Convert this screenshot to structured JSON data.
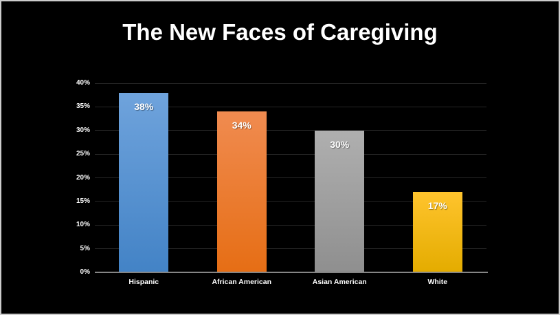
{
  "slide": {
    "title": "The New Faces of Caregiving"
  },
  "chart_data": {
    "type": "bar",
    "title": "The New Faces of Caregiving",
    "categories": [
      "Hispanic",
      "African American",
      "Asian American",
      "White"
    ],
    "values": [
      38,
      34,
      30,
      17
    ],
    "value_labels": [
      "38%",
      "34%",
      "30%",
      "17%"
    ],
    "bar_colors": [
      {
        "top": "#6FA3DC",
        "bottom": "#4383C6"
      },
      {
        "top": "#F08B50",
        "bottom": "#E66E15"
      },
      {
        "top": "#AFAFAF",
        "bottom": "#8F8F8F"
      },
      {
        "top": "#FFC42D",
        "bottom": "#E4AC00"
      }
    ],
    "xlabel": "",
    "ylabel": "",
    "ylim": [
      0,
      40
    ],
    "yticks": [
      "0%",
      "5%",
      "10%",
      "15%",
      "20%",
      "25%",
      "30%",
      "35%",
      "40%"
    ],
    "ytick_values": [
      0,
      5,
      10,
      15,
      20,
      25,
      30,
      35,
      40
    ],
    "grid": true,
    "legend_position": "none",
    "background_color": "#000000",
    "gridline_color": "#262626",
    "axis_line_color": "#858585",
    "text_color": "#FFFFFF"
  }
}
